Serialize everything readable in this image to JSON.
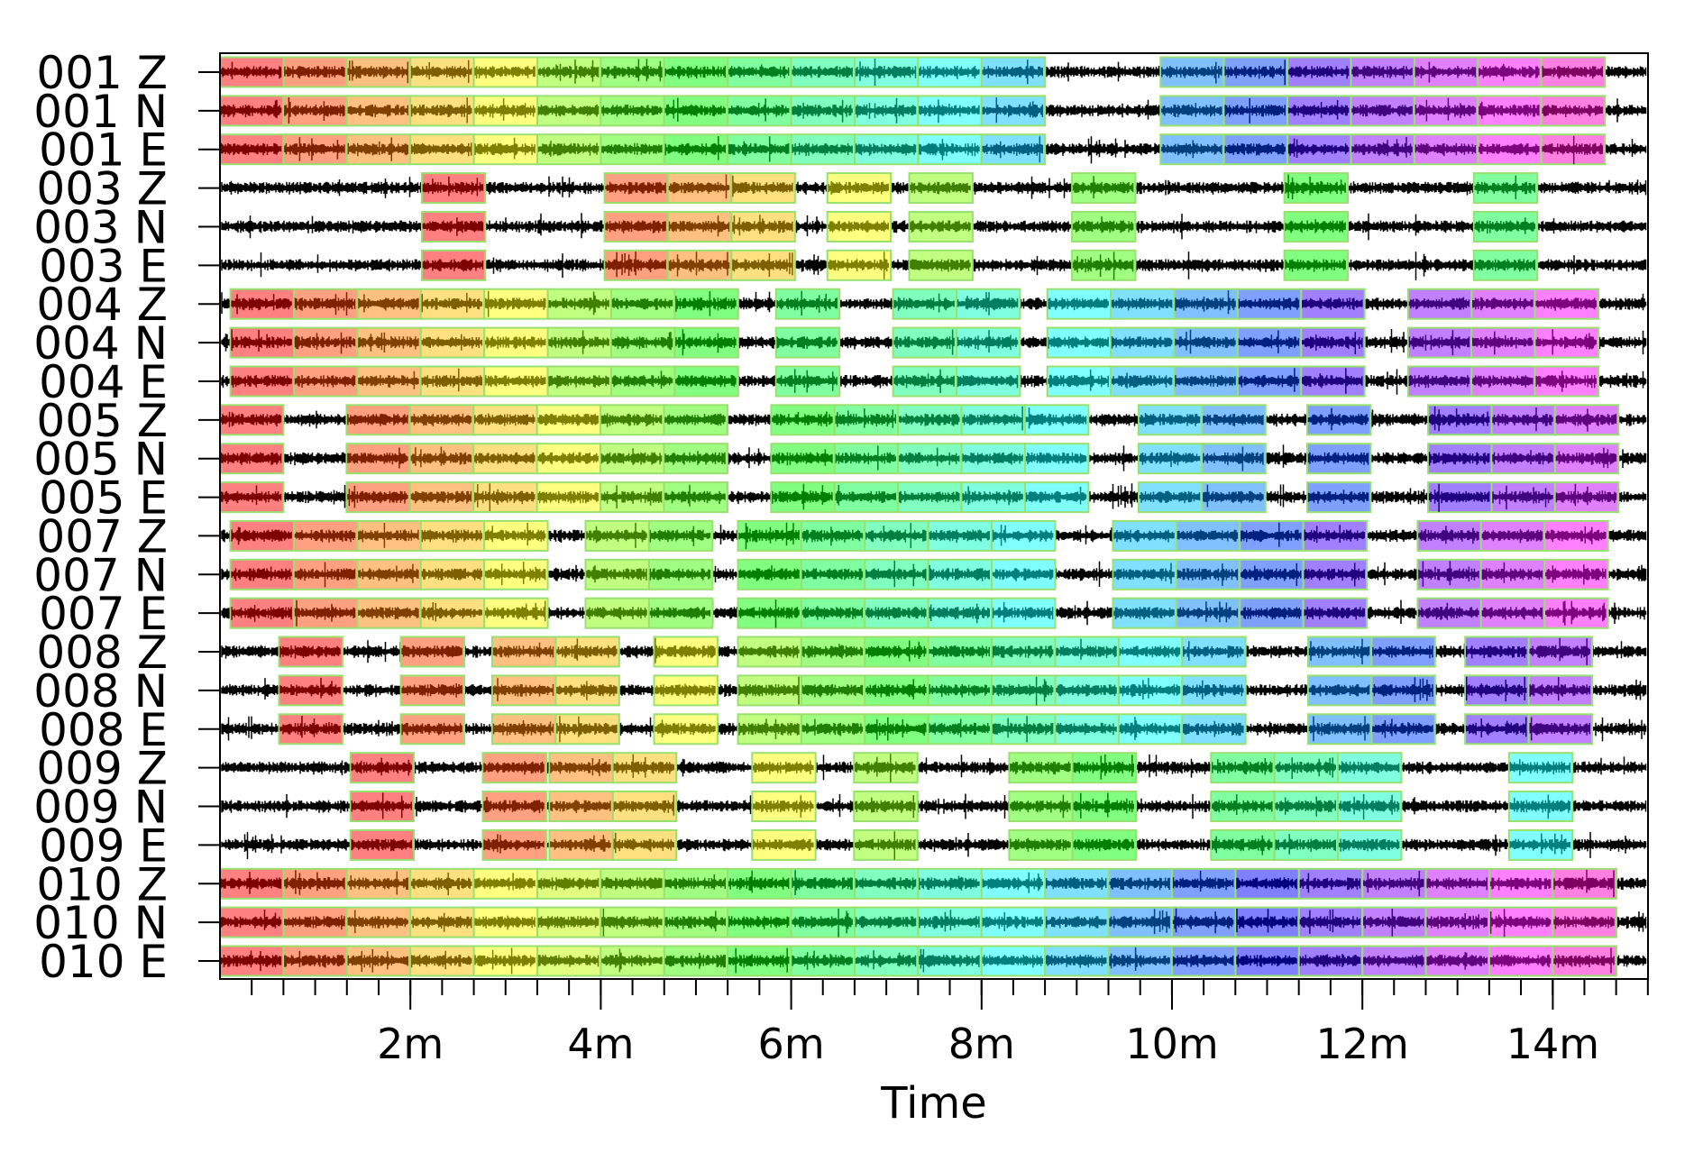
{
  "chart_data": {
    "type": "waveform-timeline",
    "title": "",
    "xlabel": "Time",
    "ylabel": "",
    "xlim_minutes": [
      0,
      15
    ],
    "x_ticks": [
      {
        "value": 2,
        "label": "2m"
      },
      {
        "value": 4,
        "label": "4m"
      },
      {
        "value": 6,
        "label": "6m"
      },
      {
        "value": 8,
        "label": "8m"
      },
      {
        "value": 10,
        "label": "10m"
      },
      {
        "value": 12,
        "label": "12m"
      },
      {
        "value": 14,
        "label": "14m"
      }
    ],
    "minor_tick_interval_minutes": 0.3333,
    "segment_length_minutes": 0.6667,
    "channels": [
      "Z",
      "N",
      "E"
    ],
    "stations": [
      {
        "id": "001",
        "runs": [
          [
            0.0,
            13
          ],
          [
            9.88,
            7
          ]
        ]
      },
      {
        "id": "003",
        "runs": [
          [
            2.12,
            1
          ],
          [
            4.04,
            3
          ],
          [
            6.38,
            1
          ],
          [
            7.24,
            1
          ],
          [
            8.95,
            1
          ],
          [
            11.18,
            1
          ],
          [
            13.17,
            1
          ]
        ]
      },
      {
        "id": "004",
        "runs": [
          [
            0.11,
            8
          ],
          [
            5.84,
            1
          ],
          [
            7.07,
            2
          ],
          [
            8.69,
            5
          ],
          [
            12.48,
            3
          ]
        ]
      },
      {
        "id": "005",
        "runs": [
          [
            0.0,
            1
          ],
          [
            1.33,
            6
          ],
          [
            5.79,
            5
          ],
          [
            9.65,
            2
          ],
          [
            11.42,
            1
          ],
          [
            12.69,
            3
          ]
        ]
      },
      {
        "id": "007",
        "runs": [
          [
            0.11,
            5
          ],
          [
            3.84,
            2
          ],
          [
            5.44,
            5
          ],
          [
            9.38,
            4
          ],
          [
            12.58,
            3
          ]
        ]
      },
      {
        "id": "008",
        "runs": [
          [
            0.62,
            1
          ],
          [
            1.9,
            1
          ],
          [
            2.86,
            2
          ],
          [
            4.56,
            1
          ],
          [
            5.44,
            8
          ],
          [
            11.43,
            2
          ],
          [
            13.08,
            2
          ]
        ]
      },
      {
        "id": "009",
        "runs": [
          [
            1.37,
            1
          ],
          [
            2.76,
            1
          ],
          [
            3.46,
            2
          ],
          [
            5.59,
            1
          ],
          [
            6.66,
            1
          ],
          [
            8.29,
            2
          ],
          [
            10.41,
            3
          ],
          [
            13.54,
            1
          ]
        ]
      },
      {
        "id": "010",
        "runs": [
          [
            0.0,
            22
          ]
        ]
      }
    ],
    "segment_palette": [
      "#ff8080",
      "#ffa080",
      "#ffc080",
      "#ffe080",
      "#ffff80",
      "#e0ff80",
      "#c0ff80",
      "#a0ff80",
      "#80ff80",
      "#80ffa0",
      "#80ffc0",
      "#80ffe0",
      "#80ffff",
      "#80e0ff",
      "#80c0ff",
      "#80a0ff",
      "#8080ff",
      "#a080ff",
      "#c080ff",
      "#e080ff",
      "#ff80ff",
      "#ff80e0"
    ],
    "segment_border_color": "#98e070",
    "trace_color": "#000000",
    "grid": false,
    "legend": "none"
  }
}
